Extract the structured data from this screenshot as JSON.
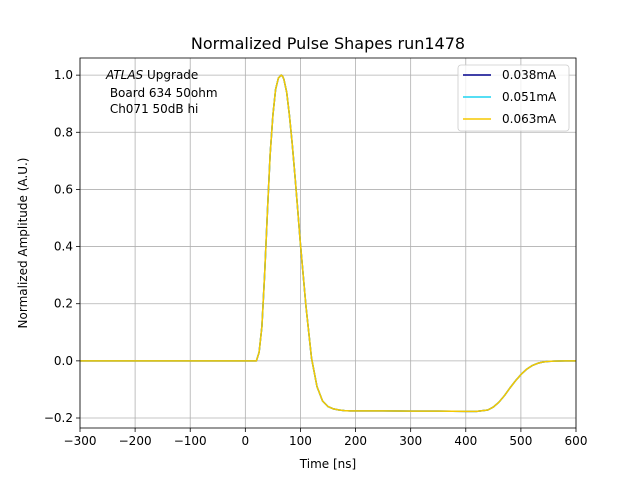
{
  "chart_data": {
    "type": "line",
    "title": "Normalized Pulse Shapes run1478",
    "xlabel": "Time [ns]",
    "ylabel": "Normalized Amplitude (A.U.)",
    "xlim": [
      -300,
      600
    ],
    "ylim": [
      -0.235,
      1.06
    ],
    "xticks": [
      -300,
      -200,
      -100,
      0,
      100,
      200,
      300,
      400,
      500,
      600
    ],
    "xtick_labels": [
      "−300",
      "−200",
      "−100",
      "0",
      "100",
      "200",
      "300",
      "400",
      "500",
      "600"
    ],
    "yticks": [
      -0.2,
      0.0,
      0.2,
      0.4,
      0.6,
      0.8,
      1.0
    ],
    "ytick_labels": [
      "−0.2",
      "0.0",
      "0.2",
      "0.4",
      "0.6",
      "0.8",
      "1.0"
    ],
    "grid": true,
    "legend_position": "top-right",
    "annotation": {
      "atlas": "ATLAS",
      "line1_rest": " Upgrade",
      "line2": " Board 634 50ohm",
      "line3": " Ch071 50dB hi"
    },
    "series": [
      {
        "name": "0.038mA",
        "color": "#00008b",
        "x": [
          -300,
          -200,
          -100,
          0,
          20,
          25,
          30,
          35,
          40,
          45,
          50,
          55,
          60,
          65,
          68,
          70,
          75,
          80,
          85,
          90,
          95,
          100,
          110,
          120,
          130,
          140,
          150,
          160,
          170,
          180,
          190,
          200,
          220,
          250,
          300,
          350,
          400,
          420,
          440,
          450,
          460,
          470,
          480,
          490,
          500,
          510,
          520,
          530,
          540,
          550,
          560,
          580,
          600
        ],
        "y": [
          0.0,
          0.0,
          0.0,
          0.0,
          0.0,
          0.03,
          0.12,
          0.3,
          0.52,
          0.72,
          0.86,
          0.95,
          0.99,
          1.0,
          0.995,
          0.985,
          0.94,
          0.86,
          0.76,
          0.65,
          0.53,
          0.41,
          0.19,
          0.01,
          -0.09,
          -0.14,
          -0.16,
          -0.168,
          -0.172,
          -0.174,
          -0.175,
          -0.175,
          -0.175,
          -0.175,
          -0.176,
          -0.176,
          -0.177,
          -0.177,
          -0.172,
          -0.162,
          -0.145,
          -0.122,
          -0.095,
          -0.07,
          -0.048,
          -0.03,
          -0.017,
          -0.009,
          -0.004,
          -0.002,
          -0.001,
          0.0,
          0.0
        ]
      },
      {
        "name": "0.051mA",
        "color": "#1fd4f0",
        "x": [
          -300,
          -200,
          -100,
          0,
          20,
          25,
          30,
          35,
          40,
          45,
          50,
          55,
          60,
          65,
          68,
          70,
          75,
          80,
          85,
          90,
          95,
          100,
          110,
          120,
          130,
          140,
          150,
          160,
          170,
          180,
          190,
          200,
          220,
          250,
          300,
          350,
          400,
          420,
          440,
          450,
          460,
          470,
          480,
          490,
          500,
          510,
          520,
          530,
          540,
          550,
          560,
          580,
          600
        ],
        "y": [
          0.0,
          0.0,
          0.0,
          0.0,
          0.0,
          0.03,
          0.12,
          0.3,
          0.52,
          0.72,
          0.86,
          0.95,
          0.99,
          1.0,
          0.995,
          0.985,
          0.94,
          0.86,
          0.76,
          0.65,
          0.53,
          0.41,
          0.19,
          0.01,
          -0.09,
          -0.14,
          -0.16,
          -0.168,
          -0.172,
          -0.174,
          -0.175,
          -0.175,
          -0.175,
          -0.175,
          -0.176,
          -0.176,
          -0.177,
          -0.177,
          -0.172,
          -0.162,
          -0.145,
          -0.122,
          -0.095,
          -0.07,
          -0.048,
          -0.03,
          -0.017,
          -0.009,
          -0.004,
          -0.002,
          -0.001,
          0.0,
          0.0
        ]
      },
      {
        "name": "0.063mA",
        "color": "#f5c800",
        "x": [
          -300,
          -200,
          -100,
          0,
          20,
          25,
          30,
          35,
          40,
          45,
          50,
          55,
          60,
          65,
          68,
          70,
          75,
          80,
          85,
          90,
          95,
          100,
          110,
          120,
          130,
          140,
          150,
          160,
          170,
          180,
          190,
          200,
          220,
          250,
          300,
          350,
          400,
          420,
          440,
          450,
          460,
          470,
          480,
          490,
          500,
          510,
          520,
          530,
          540,
          550,
          560,
          580,
          600
        ],
        "y": [
          0.0,
          0.0,
          0.0,
          0.0,
          0.0,
          0.03,
          0.12,
          0.3,
          0.52,
          0.72,
          0.86,
          0.95,
          0.99,
          1.0,
          0.995,
          0.985,
          0.94,
          0.86,
          0.76,
          0.65,
          0.53,
          0.41,
          0.19,
          0.01,
          -0.09,
          -0.14,
          -0.16,
          -0.168,
          -0.172,
          -0.174,
          -0.175,
          -0.175,
          -0.175,
          -0.175,
          -0.176,
          -0.176,
          -0.177,
          -0.177,
          -0.172,
          -0.162,
          -0.145,
          -0.122,
          -0.095,
          -0.07,
          -0.048,
          -0.03,
          -0.017,
          -0.009,
          -0.004,
          -0.002,
          -0.001,
          0.0,
          0.0
        ]
      }
    ]
  }
}
